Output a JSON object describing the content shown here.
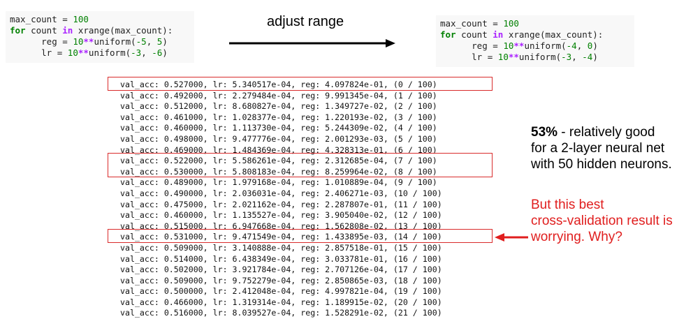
{
  "code_left": {
    "lines": [
      [
        {
          "t": "max_count = ",
          "c": ""
        },
        {
          "t": "100",
          "c": "num"
        }
      ],
      [
        {
          "t": "for",
          "c": "kw"
        },
        {
          "t": " count ",
          "c": ""
        },
        {
          "t": "in",
          "c": "op"
        },
        {
          "t": " xrange(max_count):",
          "c": ""
        }
      ],
      [
        {
          "t": "      reg = ",
          "c": ""
        },
        {
          "t": "10",
          "c": "num"
        },
        {
          "t": "**",
          "c": "op"
        },
        {
          "t": "uniform(",
          "c": ""
        },
        {
          "t": "-5",
          "c": "num"
        },
        {
          "t": ", ",
          "c": ""
        },
        {
          "t": "5",
          "c": "num"
        },
        {
          "t": ")",
          "c": ""
        }
      ],
      [
        {
          "t": "      lr = ",
          "c": ""
        },
        {
          "t": "10",
          "c": "num"
        },
        {
          "t": "**",
          "c": "op"
        },
        {
          "t": "uniform(",
          "c": ""
        },
        {
          "t": "-3",
          "c": "num"
        },
        {
          "t": ", ",
          "c": ""
        },
        {
          "t": "-6",
          "c": "num"
        },
        {
          "t": ")",
          "c": ""
        }
      ]
    ]
  },
  "code_right": {
    "lines": [
      [
        {
          "t": "max_count = ",
          "c": ""
        },
        {
          "t": "100",
          "c": "num"
        }
      ],
      [
        {
          "t": "for",
          "c": "kw"
        },
        {
          "t": " count ",
          "c": ""
        },
        {
          "t": "in",
          "c": "op"
        },
        {
          "t": " xrange(max_count):",
          "c": ""
        }
      ],
      [
        {
          "t": "      reg = ",
          "c": ""
        },
        {
          "t": "10",
          "c": "num"
        },
        {
          "t": "**",
          "c": "op"
        },
        {
          "t": "uniform(",
          "c": ""
        },
        {
          "t": "-4",
          "c": "num"
        },
        {
          "t": ", ",
          "c": ""
        },
        {
          "t": "0",
          "c": "num"
        },
        {
          "t": ")",
          "c": ""
        }
      ],
      [
        {
          "t": "      lr = ",
          "c": ""
        },
        {
          "t": "10",
          "c": "num"
        },
        {
          "t": "**",
          "c": "op"
        },
        {
          "t": "uniform(",
          "c": ""
        },
        {
          "t": "-3",
          "c": "num"
        },
        {
          "t": ", ",
          "c": ""
        },
        {
          "t": "-4",
          "c": "num"
        },
        {
          "t": ")",
          "c": ""
        }
      ]
    ]
  },
  "adjust_label": "adjust range",
  "log_lines": [
    "val_acc: 0.527000, lr: 5.340517e-04, reg: 4.097824e-01, (0 / 100)",
    "val_acc: 0.492000, lr: 2.279484e-04, reg: 9.991345e-04, (1 / 100)",
    "val_acc: 0.512000, lr: 8.680827e-04, reg: 1.349727e-02, (2 / 100)",
    "val_acc: 0.461000, lr: 1.028377e-04, reg: 1.220193e-02, (3 / 100)",
    "val_acc: 0.460000, lr: 1.113730e-04, reg: 5.244309e-02, (4 / 100)",
    "val_acc: 0.498000, lr: 9.477776e-04, reg: 2.001293e-03, (5 / 100)",
    "val_acc: 0.469000, lr: 1.484369e-04, reg: 4.328313e-01, (6 / 100)",
    "val_acc: 0.522000, lr: 5.586261e-04, reg: 2.312685e-04, (7 / 100)",
    "val_acc: 0.530000, lr: 5.808183e-04, reg: 8.259964e-02, (8 / 100)",
    "val_acc: 0.489000, lr: 1.979168e-04, reg: 1.010889e-04, (9 / 100)",
    "val_acc: 0.490000, lr: 2.036031e-04, reg: 2.406271e-03, (10 / 100)",
    "val_acc: 0.475000, lr: 2.021162e-04, reg: 2.287807e-01, (11 / 100)",
    "val_acc: 0.460000, lr: 1.135527e-04, reg: 3.905040e-02, (12 / 100)",
    "val_acc: 0.515000, lr: 6.947668e-04, reg: 1.562808e-02, (13 / 100)",
    "val_acc: 0.531000, lr: 9.471549e-04, reg: 1.433895e-03, (14 / 100)",
    "val_acc: 0.509000, lr: 3.140888e-04, reg: 2.857518e-01, (15 / 100)",
    "val_acc: 0.514000, lr: 6.438349e-04, reg: 3.033781e-01, (16 / 100)",
    "val_acc: 0.502000, lr: 3.921784e-04, reg: 2.707126e-04, (17 / 100)",
    "val_acc: 0.509000, lr: 9.752279e-04, reg: 2.850865e-03, (18 / 100)",
    "val_acc: 0.500000, lr: 2.412048e-04, reg: 4.997821e-04, (19 / 100)",
    "val_acc: 0.466000, lr: 1.319314e-04, reg: 1.189915e-02, (20 / 100)",
    "val_acc: 0.516000, lr: 8.039527e-04, reg: 1.528291e-02, (21 / 100)"
  ],
  "highlighted_rows": [
    [
      0,
      0
    ],
    [
      7,
      8
    ],
    [
      14,
      14
    ]
  ],
  "note_good": {
    "bold": "53%",
    "line1_rest": " - relatively good",
    "line2": "for a 2-layer neural net",
    "line3": "with 50 hidden neurons."
  },
  "note_warn": {
    "line1": "But this best",
    "line2": "cross-validation result is",
    "line3": "worrying. Why?"
  },
  "colors": {
    "highlight": "#d92b2b",
    "warning_text": "#e01e1e",
    "keyword": "#008000",
    "operator": "#aa22ff"
  }
}
